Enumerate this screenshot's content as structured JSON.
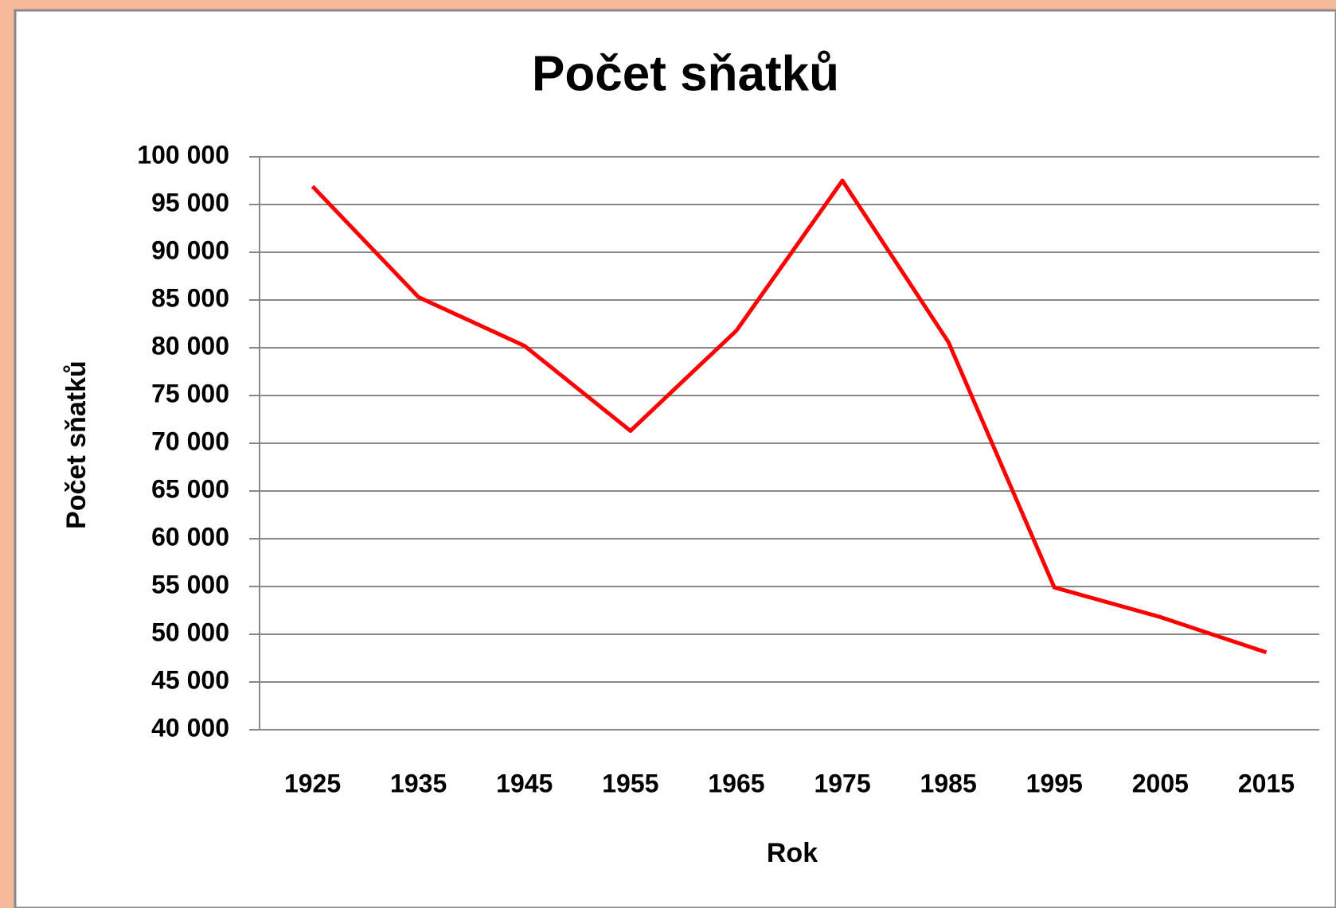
{
  "chart_data": {
    "type": "line",
    "title": "Počet sňatků",
    "x_label": "Rok",
    "y_label": "Počet sňatků",
    "categories": [
      "1925",
      "1935",
      "1945",
      "1955",
      "1965",
      "1975",
      "1985",
      "1995",
      "2005",
      "2015"
    ],
    "series": [
      {
        "name": "Počet sňatků",
        "color": "#ff0000",
        "values": [
          96900,
          85300,
          80200,
          71300,
          81800,
          97500,
          80600,
          54900,
          51800,
          48100
        ]
      }
    ],
    "ylim": [
      40000,
      100000
    ],
    "yticks": [
      {
        "value": 40000,
        "label": "40 000"
      },
      {
        "value": 45000,
        "label": "45 000"
      },
      {
        "value": 50000,
        "label": "50 000"
      },
      {
        "value": 55000,
        "label": "55 000"
      },
      {
        "value": 60000,
        "label": "60 000"
      },
      {
        "value": 65000,
        "label": "65 000"
      },
      {
        "value": 70000,
        "label": "70 000"
      },
      {
        "value": 75000,
        "label": "75 000"
      },
      {
        "value": 80000,
        "label": "80 000"
      },
      {
        "value": 85000,
        "label": "85 000"
      },
      {
        "value": 90000,
        "label": "90 000"
      },
      {
        "value": 95000,
        "label": "95 000"
      },
      {
        "value": 100000,
        "label": "100 000"
      }
    ],
    "grid": true
  }
}
